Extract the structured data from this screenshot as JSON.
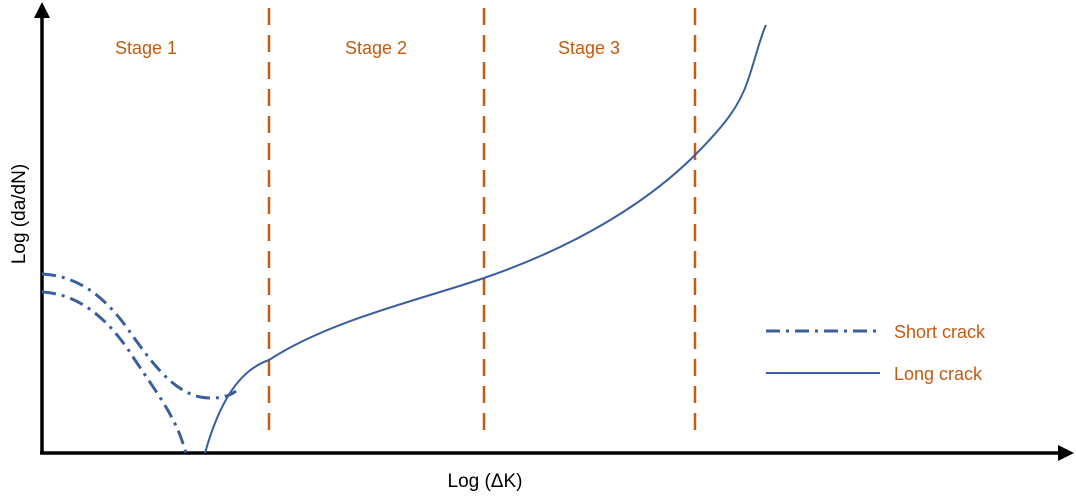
{
  "colors": {
    "stage": "#C55A11",
    "curve": "#3A5E9E",
    "axis": "#000000"
  },
  "stages": [
    {
      "label": "Stage 1"
    },
    {
      "label": "Stage 2"
    },
    {
      "label": "Stage 3"
    }
  ],
  "axes": {
    "x_label": "Log (ΔK)",
    "y_label": "Log (da/dN)"
  },
  "legend": {
    "short_crack": "Short crack",
    "long_crack": "Long crack"
  }
}
